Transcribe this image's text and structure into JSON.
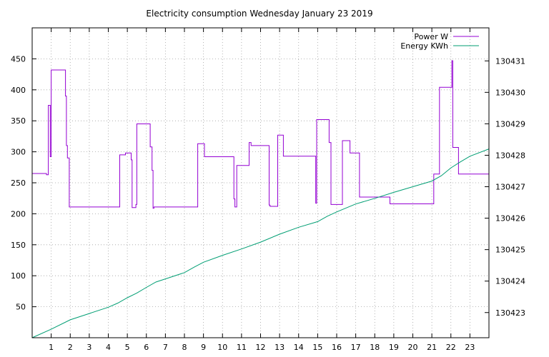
{
  "chart_data": {
    "type": "line",
    "title": "Electricity consumption Wednesday January 23 2019",
    "xlabel": "",
    "ylabel": "",
    "xlim": [
      0,
      24
    ],
    "ylim": [
      0,
      500
    ],
    "y2lim": [
      130422.2,
      130432.05
    ],
    "x_ticks": [
      1,
      2,
      3,
      4,
      5,
      6,
      7,
      8,
      9,
      10,
      11,
      12,
      13,
      14,
      15,
      16,
      17,
      18,
      19,
      20,
      21,
      22,
      23
    ],
    "y_ticks": [
      50,
      100,
      150,
      200,
      250,
      300,
      350,
      400,
      450
    ],
    "y2_ticks": [
      130423,
      130424,
      130425,
      130426,
      130427,
      130428,
      130429,
      130430,
      130431
    ],
    "grid": true,
    "legend_position": "top-right",
    "colors": {
      "power": "#9400d3",
      "energy": "#009e73"
    },
    "series": [
      {
        "name": "Power W",
        "axis": "left",
        "step": true,
        "x": [
          0,
          0.75,
          0.85,
          0.95,
          1.0,
          1.1,
          1.15,
          1.2,
          1.75,
          1.8,
          1.85,
          1.95,
          4.4,
          4.6,
          4.9,
          5.2,
          5.25,
          5.45,
          5.5,
          6.2,
          6.3,
          6.35,
          6.4,
          8.3,
          8.7,
          9.05,
          10.6,
          10.65,
          10.75,
          11.4,
          11.5,
          12.45,
          12.5,
          12.9,
          13.2,
          14.9,
          14.95,
          15.6,
          15.7,
          16.3,
          16.7,
          17.2,
          18.8,
          21.1,
          21.4,
          22.05,
          22.1,
          22.4,
          24
        ],
        "values": [
          265,
          263,
          375,
          292,
          432,
          432,
          432,
          432,
          390,
          310,
          290,
          211,
          211,
          295,
          298,
          287,
          210,
          215,
          345,
          308,
          270,
          209,
          211,
          211,
          313,
          292,
          224,
          211,
          278,
          315,
          310,
          214,
          212,
          327,
          293,
          217,
          352,
          315,
          215,
          318,
          298,
          227,
          216,
          264,
          404,
          447,
          307,
          264,
          264
        ]
      },
      {
        "name": "Energy KWh",
        "axis": "right",
        "step": false,
        "x": [
          0,
          1,
          2,
          3,
          4,
          4.5,
          5,
          5.5,
          6,
          6.5,
          7,
          8,
          8.5,
          9,
          10,
          11,
          12,
          13,
          14,
          15,
          15.5,
          16,
          17,
          18,
          19,
          20,
          21,
          21.5,
          22,
          22.5,
          23,
          24
        ],
        "values": [
          130422.2,
          130422.47,
          130422.77,
          130422.97,
          130423.17,
          130423.3,
          130423.47,
          130423.62,
          130423.8,
          130423.97,
          130424.07,
          130424.27,
          130424.44,
          130424.6,
          130424.82,
          130425.02,
          130425.24,
          130425.49,
          130425.71,
          130425.89,
          130426.06,
          130426.2,
          130426.45,
          130426.63,
          130426.82,
          130427.0,
          130427.18,
          130427.35,
          130427.6,
          130427.79,
          130427.97,
          130428.2
        ]
      }
    ]
  }
}
